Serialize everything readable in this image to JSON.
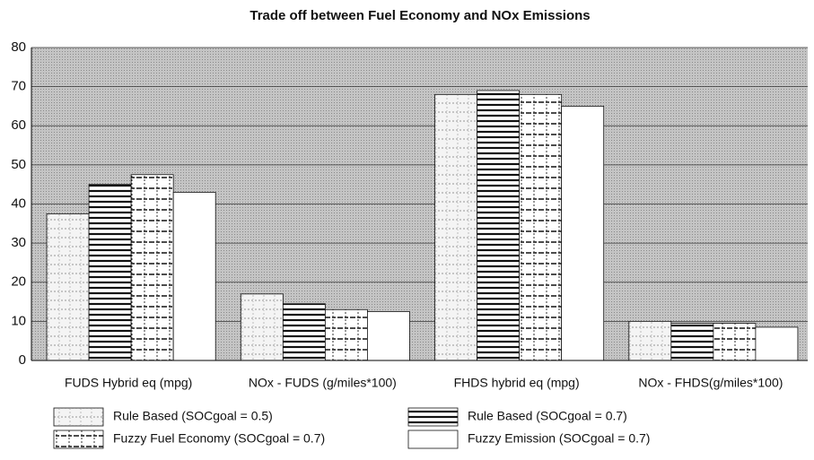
{
  "chart_data": {
    "type": "bar",
    "title": "Trade off between Fuel Economy and NOx Emissions",
    "categories": [
      "FUDS Hybrid eq (mpg)",
      "NOx - FUDS (g/miles*100)",
      "FHDS hybrid eq (mpg)",
      "NOx - FHDS(g/miles*100)"
    ],
    "series": [
      {
        "name": "Rule Based (SOCgoal = 0.5)",
        "color": "#f2f2f2",
        "values": [
          37.5,
          17,
          68,
          10
        ]
      },
      {
        "name": "Rule Based (SOCgoal = 0.7)",
        "color": "#ffffff",
        "values": [
          45,
          14.5,
          69,
          9.5
        ]
      },
      {
        "name": "Fuzzy Fuel Economy (SOCgoal = 0.7)",
        "color": "#ffffff",
        "values": [
          47.5,
          13,
          68,
          9.5
        ]
      },
      {
        "name": "Fuzzy Emission (SOCgoal = 0.7)",
        "color": "#ffffff",
        "values": [
          43,
          12.5,
          65,
          8.5
        ]
      }
    ],
    "ylim": [
      0,
      80
    ],
    "yticks": [
      0,
      10,
      20,
      30,
      40,
      50,
      60,
      70,
      80
    ],
    "grid": true
  }
}
